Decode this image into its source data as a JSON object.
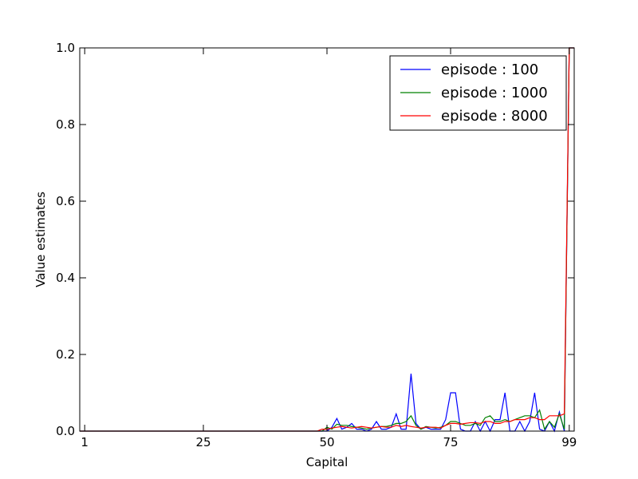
{
  "chart_data": {
    "type": "line",
    "xlabel": "Capital",
    "ylabel": "Value estimates",
    "xlim": [
      0,
      100
    ],
    "ylim": [
      0,
      1.0
    ],
    "x_ticks": [
      1,
      25,
      50,
      75,
      99
    ],
    "y_ticks": [
      0.0,
      0.2,
      0.4,
      0.6,
      0.8,
      1.0
    ],
    "y_tick_labels": [
      "0.0",
      "0.2",
      "0.4",
      "0.6",
      "0.8",
      "1.0"
    ],
    "grid": false,
    "legend_position": "top-right",
    "series": [
      {
        "name": "episode : 100",
        "color": "#0000ff",
        "x": [
          0,
          1,
          25,
          47,
          48,
          49,
          50,
          51,
          52,
          53,
          54,
          55,
          56,
          57,
          58,
          59,
          60,
          61,
          62,
          63,
          64,
          65,
          66,
          67,
          68,
          69,
          70,
          71,
          72,
          73,
          74,
          75,
          76,
          77,
          78,
          79,
          80,
          81,
          82,
          83,
          84,
          85,
          86,
          87,
          88,
          89,
          90,
          91,
          92,
          93,
          94,
          95,
          96,
          97,
          98,
          99,
          100
        ],
        "y": [
          0,
          0,
          0,
          0,
          0,
          0,
          0,
          0.01,
          0.033,
          0.005,
          0.01,
          0.02,
          0.005,
          0.005,
          0,
          0.005,
          0.025,
          0.005,
          0.005,
          0.01,
          0.045,
          0.005,
          0.005,
          0.15,
          0.02,
          0.005,
          0.01,
          0.005,
          0.005,
          0.005,
          0.03,
          0.1,
          0.1,
          0.005,
          0,
          0,
          0.025,
          0,
          0.025,
          0,
          0.03,
          0.03,
          0.1,
          0,
          0,
          0.025,
          0,
          0.025,
          0.1,
          0.005,
          0,
          0.025,
          0,
          0.05,
          0,
          1.0,
          1.0
        ]
      },
      {
        "name": "episode : 1000",
        "color": "#008000",
        "x": [
          0,
          1,
          25,
          47,
          48,
          49,
          50,
          51,
          52,
          53,
          54,
          55,
          56,
          57,
          58,
          59,
          60,
          61,
          62,
          63,
          64,
          65,
          66,
          67,
          68,
          69,
          70,
          71,
          72,
          73,
          74,
          75,
          76,
          77,
          78,
          79,
          80,
          81,
          82,
          83,
          84,
          85,
          86,
          87,
          88,
          89,
          90,
          91,
          92,
          93,
          94,
          95,
          96,
          97,
          98,
          99,
          100
        ],
        "y": [
          0,
          0,
          0,
          0,
          0,
          0,
          0.01,
          0.005,
          0.018,
          0.015,
          0.015,
          0.012,
          0.01,
          0.008,
          0.005,
          0.008,
          0.01,
          0.012,
          0.012,
          0.015,
          0.02,
          0.02,
          0.025,
          0.04,
          0.015,
          0.005,
          0.012,
          0.01,
          0.008,
          0.01,
          0.015,
          0.025,
          0.025,
          0.02,
          0.015,
          0.015,
          0.02,
          0.015,
          0.035,
          0.04,
          0.025,
          0.025,
          0.03,
          0.025,
          0.03,
          0.035,
          0.04,
          0.04,
          0.035,
          0.055,
          0.005,
          0.025,
          0.01,
          0.045,
          0.005,
          1.0,
          1.0
        ]
      },
      {
        "name": "episode : 8000",
        "color": "#ff0000",
        "x": [
          0,
          1,
          25,
          47,
          48,
          49,
          50,
          51,
          52,
          53,
          54,
          55,
          56,
          57,
          58,
          59,
          60,
          61,
          62,
          63,
          64,
          65,
          66,
          67,
          68,
          69,
          70,
          71,
          72,
          73,
          74,
          75,
          76,
          77,
          78,
          79,
          80,
          81,
          82,
          83,
          84,
          85,
          86,
          87,
          88,
          89,
          90,
          91,
          92,
          93,
          94,
          95,
          96,
          97,
          98,
          99,
          100
        ],
        "y": [
          0,
          0,
          0,
          0,
          0,
          0.005,
          0.005,
          0.008,
          0.01,
          0.012,
          0.01,
          0.008,
          0.01,
          0.012,
          0.01,
          0.008,
          0.01,
          0.012,
          0.01,
          0.01,
          0.015,
          0.012,
          0.015,
          0.012,
          0.01,
          0.008,
          0.01,
          0.01,
          0.01,
          0.008,
          0.015,
          0.02,
          0.02,
          0.018,
          0.02,
          0.022,
          0.022,
          0.02,
          0.025,
          0.025,
          0.02,
          0.02,
          0.025,
          0.025,
          0.03,
          0.03,
          0.03,
          0.035,
          0.035,
          0.03,
          0.03,
          0.04,
          0.04,
          0.04,
          0.045,
          1.0,
          1.0
        ]
      }
    ]
  }
}
